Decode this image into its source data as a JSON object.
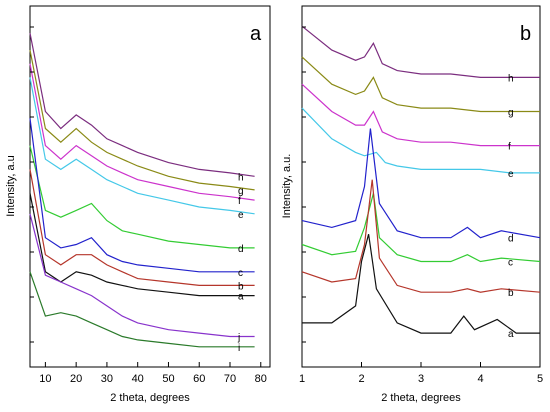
{
  "chart_data": [
    {
      "type": "line",
      "panel_label": "a",
      "xlabel": "2 theta, degrees",
      "ylabel": "Intensity, a.u",
      "xlim": [
        5,
        83
      ],
      "xticks": [
        10,
        20,
        30,
        40,
        50,
        60,
        70,
        80
      ],
      "y_tick_labels": false,
      "grid": false,
      "series": [
        {
          "name": "h",
          "color": "#7b2d7f",
          "x": [
            5,
            10,
            15,
            20,
            25,
            30,
            35,
            40,
            50,
            60,
            70,
            78
          ],
          "y": [
            0.95,
            0.72,
            0.67,
            0.71,
            0.68,
            0.64,
            0.62,
            0.6,
            0.57,
            0.55,
            0.54,
            0.53
          ]
        },
        {
          "name": "g",
          "color": "#8a8a16",
          "x": [
            5,
            10,
            15,
            20,
            25,
            30,
            35,
            40,
            50,
            60,
            70,
            78
          ],
          "y": [
            0.9,
            0.67,
            0.63,
            0.67,
            0.63,
            0.6,
            0.58,
            0.56,
            0.53,
            0.51,
            0.5,
            0.49
          ]
        },
        {
          "name": "f",
          "color": "#cc33cc",
          "x": [
            5,
            10,
            15,
            20,
            25,
            30,
            35,
            40,
            50,
            60,
            70,
            78
          ],
          "y": [
            0.86,
            0.62,
            0.58,
            0.62,
            0.59,
            0.56,
            0.54,
            0.52,
            0.5,
            0.48,
            0.47,
            0.46
          ]
        },
        {
          "name": "e",
          "color": "#44c8e8",
          "x": [
            5,
            10,
            15,
            20,
            25,
            30,
            35,
            40,
            50,
            60,
            70,
            78
          ],
          "y": [
            0.82,
            0.58,
            0.55,
            0.58,
            0.55,
            0.52,
            0.5,
            0.48,
            0.46,
            0.44,
            0.43,
            0.42
          ]
        },
        {
          "name": "d",
          "color": "#33cc33",
          "x": [
            5,
            10,
            15,
            20,
            25,
            30,
            35,
            40,
            50,
            60,
            70,
            78
          ],
          "y": [
            0.62,
            0.43,
            0.41,
            0.43,
            0.45,
            0.4,
            0.37,
            0.36,
            0.34,
            0.33,
            0.32,
            0.32
          ]
        },
        {
          "name": "c",
          "color": "#2222cc",
          "x": [
            5,
            10,
            15,
            20,
            25,
            30,
            35,
            40,
            50,
            60,
            70,
            78
          ],
          "y": [
            0.7,
            0.35,
            0.32,
            0.33,
            0.35,
            0.3,
            0.28,
            0.27,
            0.26,
            0.25,
            0.25,
            0.25
          ]
        },
        {
          "name": "b",
          "color": "#b5362b",
          "x": [
            5,
            10,
            15,
            20,
            25,
            30,
            35,
            40,
            50,
            60,
            70,
            78
          ],
          "y": [
            0.55,
            0.3,
            0.27,
            0.3,
            0.3,
            0.27,
            0.25,
            0.23,
            0.22,
            0.21,
            0.21,
            0.21
          ]
        },
        {
          "name": "a",
          "color": "#111111",
          "x": [
            5,
            10,
            15,
            20,
            25,
            30,
            35,
            40,
            50,
            60,
            70,
            78
          ],
          "y": [
            0.48,
            0.25,
            0.22,
            0.25,
            0.24,
            0.22,
            0.21,
            0.2,
            0.19,
            0.18,
            0.18,
            0.18
          ]
        },
        {
          "name": "j",
          "color": "#8833cc",
          "x": [
            5,
            10,
            15,
            20,
            25,
            30,
            35,
            40,
            50,
            60,
            70,
            78
          ],
          "y": [
            0.42,
            0.24,
            0.22,
            0.2,
            0.18,
            0.15,
            0.12,
            0.1,
            0.08,
            0.07,
            0.06,
            0.06
          ]
        },
        {
          "name": "i",
          "color": "#2a7a2a",
          "x": [
            5,
            10,
            15,
            20,
            25,
            30,
            35,
            40,
            50,
            60,
            70,
            78
          ],
          "y": [
            0.25,
            0.12,
            0.13,
            0.12,
            0.1,
            0.08,
            0.06,
            0.05,
            0.04,
            0.03,
            0.03,
            0.03
          ]
        }
      ]
    },
    {
      "type": "line",
      "panel_label": "b",
      "xlabel": "2 theta, degrees",
      "ylabel": "Intensity, a.u.",
      "xlim": [
        1,
        5
      ],
      "xticks": [
        1,
        2,
        3,
        4,
        5
      ],
      "y_tick_labels": false,
      "grid": false,
      "series": [
        {
          "name": "h",
          "color": "#7b2d7f",
          "x": [
            1,
            1.5,
            1.9,
            2.05,
            2.2,
            2.35,
            2.6,
            3,
            3.5,
            4,
            4.5,
            5
          ],
          "y": [
            0.97,
            0.9,
            0.87,
            0.88,
            0.92,
            0.86,
            0.84,
            0.83,
            0.83,
            0.82,
            0.82,
            0.82
          ]
        },
        {
          "name": "g",
          "color": "#8a8a16",
          "x": [
            1,
            1.5,
            1.9,
            2.05,
            2.2,
            2.35,
            2.6,
            3,
            3.5,
            4,
            4.5,
            5
          ],
          "y": [
            0.88,
            0.8,
            0.77,
            0.78,
            0.82,
            0.76,
            0.74,
            0.73,
            0.73,
            0.72,
            0.72,
            0.72
          ]
        },
        {
          "name": "f",
          "color": "#cc33cc",
          "x": [
            1,
            1.5,
            1.9,
            2.05,
            2.2,
            2.35,
            2.6,
            3,
            3.5,
            4,
            4.5,
            5
          ],
          "y": [
            0.8,
            0.72,
            0.68,
            0.68,
            0.72,
            0.66,
            0.64,
            0.63,
            0.63,
            0.62,
            0.62,
            0.62
          ]
        },
        {
          "name": "e",
          "color": "#44c8e8",
          "x": [
            1,
            1.5,
            1.9,
            2.05,
            2.25,
            2.4,
            2.6,
            3,
            3.5,
            4,
            4.5,
            5
          ],
          "y": [
            0.73,
            0.64,
            0.6,
            0.59,
            0.6,
            0.57,
            0.56,
            0.55,
            0.55,
            0.55,
            0.54,
            0.54
          ]
        },
        {
          "name": "d",
          "color": "#2222cc",
          "x": [
            1,
            1.5,
            1.9,
            2.05,
            2.15,
            2.3,
            2.6,
            3,
            3.5,
            3.78,
            4,
            4.35,
            5
          ],
          "y": [
            0.4,
            0.38,
            0.4,
            0.5,
            0.67,
            0.45,
            0.37,
            0.35,
            0.35,
            0.38,
            0.35,
            0.37,
            0.35
          ]
        },
        {
          "name": "c",
          "color": "#33cc33",
          "x": [
            1,
            1.5,
            1.9,
            2.05,
            2.2,
            2.3,
            2.6,
            3,
            3.5,
            3.78,
            4,
            4.35,
            5
          ],
          "y": [
            0.33,
            0.3,
            0.31,
            0.38,
            0.48,
            0.35,
            0.3,
            0.28,
            0.28,
            0.3,
            0.28,
            0.29,
            0.28
          ]
        },
        {
          "name": "b",
          "color": "#b5362b",
          "x": [
            1,
            1.5,
            1.9,
            2.05,
            2.18,
            2.3,
            2.6,
            3,
            3.5,
            3.78,
            4,
            4.35,
            5
          ],
          "y": [
            0.25,
            0.22,
            0.23,
            0.33,
            0.52,
            0.29,
            0.21,
            0.19,
            0.19,
            0.2,
            0.19,
            0.2,
            0.19
          ]
        },
        {
          "name": "a",
          "color": "#111111",
          "x": [
            1,
            1.5,
            1.9,
            2.0,
            2.12,
            2.25,
            2.6,
            3,
            3.5,
            3.72,
            3.9,
            4.28,
            4.6,
            5
          ],
          "y": [
            0.1,
            0.1,
            0.15,
            0.28,
            0.36,
            0.2,
            0.1,
            0.07,
            0.07,
            0.12,
            0.08,
            0.11,
            0.07,
            0.07
          ]
        }
      ]
    }
  ]
}
